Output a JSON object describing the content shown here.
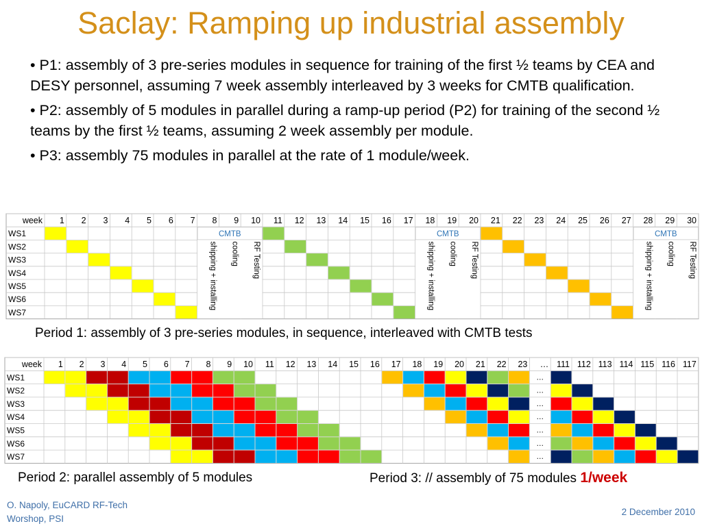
{
  "title": "Saclay: Ramping up industrial assembly",
  "bullets": [
    "• P1: assembly of 3 pre-series modules in sequence for training of the first ½ teams by CEA and DESY personnel, assuming 7 week assembly interleaved by 3 weeks for CMTB qualification.",
    "• P2: assembly of 5 modules in parallel during a ramp-up period (P2) for training of the second ½ teams by the first ½ teams, assuming 2 week assembly per module.",
    "• P3: assembly 75 modules in parallel at the rate of 1 module/week."
  ],
  "colors": {
    "yellow": "#ffff00",
    "green": "#92d050",
    "orange": "#ffc000",
    "darkred": "#c00000",
    "blue": "#00b0f0",
    "red": "#ff0000",
    "navy": "#002060",
    "title": "#d4901a",
    "cmtb": "#2e74b5",
    "accent": "#cc0000"
  },
  "table1": {
    "header_label": "week",
    "weeks": [
      "1",
      "2",
      "3",
      "4",
      "5",
      "6",
      "7",
      "8",
      "9",
      "10",
      "11",
      "12",
      "13",
      "14",
      "15",
      "16",
      "17",
      "18",
      "19",
      "20",
      "21",
      "22",
      "23",
      "24",
      "25",
      "26",
      "27",
      "28",
      "29",
      "30"
    ],
    "rows": [
      "WS1",
      "WS2",
      "WS3",
      "WS4",
      "WS5",
      "WS6",
      "WS7"
    ],
    "qual_label": "CMTB",
    "qual_texts": [
      "shipping + installing",
      "cooling",
      "RF Testing"
    ],
    "assembly_blocks": [
      {
        "start_week": 1,
        "color": "yellow"
      },
      {
        "start_week": 11,
        "color": "green"
      },
      {
        "start_week": 21,
        "color": "orange"
      }
    ],
    "qual_blocks_start_weeks": [
      8,
      18,
      28
    ]
  },
  "caption1": "Period 1: assembly of 3 pre-series modules, in sequence, interleaved with CMTB tests",
  "table2": {
    "header_label": "week",
    "weeks": [
      "1",
      "2",
      "3",
      "4",
      "5",
      "6",
      "7",
      "8",
      "9",
      "10",
      "11",
      "12",
      "13",
      "14",
      "15",
      "16",
      "17",
      "18",
      "19",
      "20",
      "21",
      "22",
      "23",
      "…",
      "111",
      "112",
      "113",
      "114",
      "115",
      "116",
      "117"
    ],
    "rows": [
      "WS1",
      "WS2",
      "WS3",
      "WS4",
      "WS5",
      "WS6",
      "WS7"
    ],
    "ellipsis": "…",
    "p2_palette": [
      "yellow",
      "darkred",
      "blue",
      "red",
      "green"
    ],
    "p3_palette": [
      "orange",
      "blue",
      "red",
      "yellow",
      "navy",
      "green"
    ]
  },
  "caption2": "Period 2: parallel assembly of 5 modules",
  "caption3_text": "Period 3: // assembly of 75 modules ",
  "caption3_accent": "1/week",
  "footer": {
    "author_line1": "O. Napoly, EuCARD RF-Tech",
    "author_line2": "Worshop, PSI",
    "date": "2 December 2010"
  }
}
